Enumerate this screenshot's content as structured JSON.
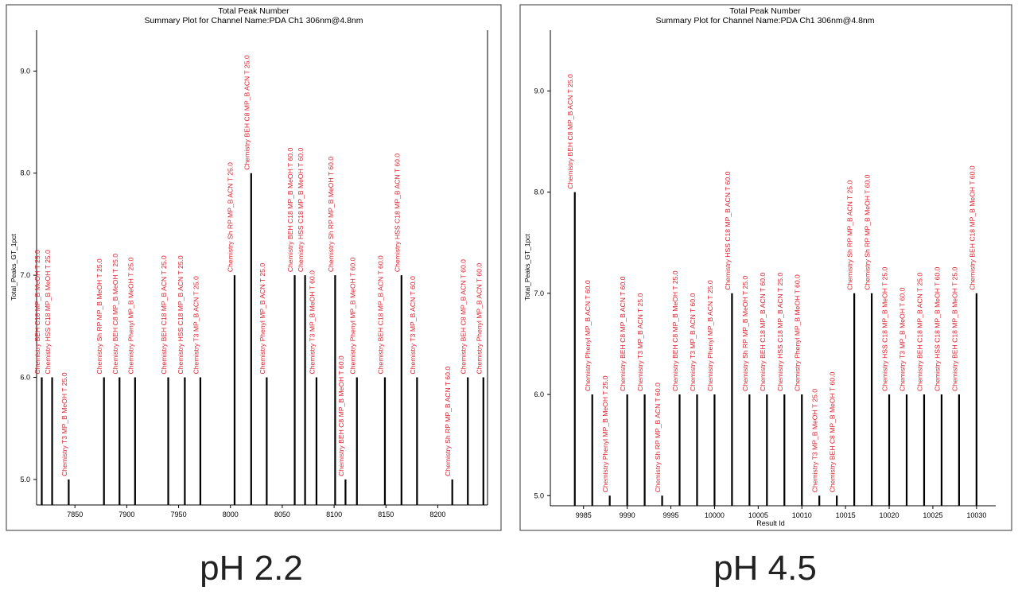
{
  "chart_data": [
    {
      "type": "bar",
      "title": "Total Peak Number",
      "subtitle": "Summary Plot for Channel Name:PDA Ch1 306nm@4.8nm",
      "ylabel": "Total_Peaks_GT_1pct",
      "xlabel": "",
      "ylim": [
        4.75,
        9.4
      ],
      "xlim": [
        7813,
        8248
      ],
      "yticks": [
        5.0,
        6.0,
        7.0,
        8.0,
        9.0
      ],
      "xticks": [
        7850,
        7900,
        7950,
        8000,
        8050,
        8100,
        8150,
        8200
      ],
      "caption": "pH 2.2",
      "points": [
        {
          "x": 7818,
          "y": 6.0,
          "label": "Chemistry BEH C18 MP_B MeOH T 25.0"
        },
        {
          "x": 7828,
          "y": 6.0,
          "label": "Chemistry HSS C18 MP_B MeOH T 25.0"
        },
        {
          "x": 7844,
          "y": 5.0,
          "label": "Chemistry T3 MP_B MeOH T 25.0"
        },
        {
          "x": 7878,
          "y": 6.0,
          "label": "Chemistry Sh RP MP_B MeOH T 25.0"
        },
        {
          "x": 7893,
          "y": 6.0,
          "label": "Chemistry BEH C8 MP_B MeOH T 25.0"
        },
        {
          "x": 7908,
          "y": 6.0,
          "label": "Chemistry Phenyl MP_B MeOH T 25.0"
        },
        {
          "x": 7940,
          "y": 6.0,
          "label": "Chemistry BEH C18 MP_B ACN T 25.0"
        },
        {
          "x": 7956,
          "y": 6.0,
          "label": "Chemistry HSS C18 MP_B ACN T 25.0"
        },
        {
          "x": 7971,
          "y": 6.0,
          "label": "Chemistry T3 MP_B ACN T 25.0"
        },
        {
          "x": 8004,
          "y": 7.0,
          "label": "Chemistry Sh RP MP_B ACN T 25.0"
        },
        {
          "x": 8020,
          "y": 8.0,
          "label": "Chemistry BEH C8 MP_B ACN T 25.0"
        },
        {
          "x": 8035,
          "y": 6.0,
          "label": "Chemistry Phenyl MP_B ACN T 25.0"
        },
        {
          "x": 8062,
          "y": 7.0,
          "label": "Chemistry BEH C18 MP_B MeOH T 60.0"
        },
        {
          "x": 8072,
          "y": 7.0,
          "label": "Chemistry HSS C18 MP_B MeOH T 60.0"
        },
        {
          "x": 8083,
          "y": 6.0,
          "label": "Chemistry T3 MP_B MeOH T 60.0"
        },
        {
          "x": 8101,
          "y": 7.0,
          "label": "Chemistry Sh RP MP_B MeOH T 60.0"
        },
        {
          "x": 8111,
          "y": 5.0,
          "label": "Chemistry BEH C8 MP_B MeOH T 60.0"
        },
        {
          "x": 8122,
          "y": 6.0,
          "label": "Chemistry Phenyl MP_B MeOH T 60.0"
        },
        {
          "x": 8149,
          "y": 6.0,
          "label": "Chemistry BEH C18 MP_B ACN T 60.0"
        },
        {
          "x": 8165,
          "y": 7.0,
          "label": "Chemistry HSS C18 MP_B ACN T 60.0"
        },
        {
          "x": 8180,
          "y": 6.0,
          "label": "Chemistry T3 MP_B ACN T 60.0"
        },
        {
          "x": 8214,
          "y": 5.0,
          "label": "Chemistry Sh RP MP_B ACN T 60.0"
        },
        {
          "x": 8229,
          "y": 6.0,
          "label": "Chemistry BEH C8 MP_B ACN T 60.0"
        },
        {
          "x": 8244,
          "y": 6.0,
          "label": "Chemistry Phenyl MP_B ACN T 60.0"
        }
      ]
    },
    {
      "type": "bar",
      "title": "Total Peak Number",
      "subtitle": "Summary Plot for Channel Name:PDA Ch1 306nm@4.8nm",
      "ylabel": "Total_Peaks_GT_1pct",
      "xlabel": "Result Id",
      "ylim": [
        4.9,
        9.6
      ],
      "xlim": [
        9981.2,
        10032.2
      ],
      "yticks": [
        5.0,
        6.0,
        7.0,
        8.0,
        9.0
      ],
      "xticks": [
        9985,
        9990,
        9995,
        10000,
        10005,
        10010,
        10015,
        10020,
        10025,
        10030
      ],
      "caption": "pH 4.5",
      "points": [
        {
          "x": 9984,
          "y": 8.0,
          "label": "Chemistry BEH C8 MP_B ACN T 25.0"
        },
        {
          "x": 9986,
          "y": 6.0,
          "label": "Chemistry Phenyl MP_B ACN T 60.0"
        },
        {
          "x": 9988,
          "y": 5.0,
          "label": "Chemistry Phenyl MP_B MeOH T 25.0"
        },
        {
          "x": 9990,
          "y": 6.0,
          "label": "Chemistry BEH C8 MP_B ACN T 60.0"
        },
        {
          "x": 9992,
          "y": 6.0,
          "label": "Chemistry T3 MP_B ACN T 25.0"
        },
        {
          "x": 9994,
          "y": 5.0,
          "label": "Chemistry Sh RP MP_B ACN T 60.0"
        },
        {
          "x": 9996,
          "y": 6.0,
          "label": "Chemistry BEH C8 MP_B MeOH T 25.0"
        },
        {
          "x": 9998,
          "y": 6.0,
          "label": "Chemistry T3 MP_B ACN T 60.0"
        },
        {
          "x": 10000,
          "y": 6.0,
          "label": "Chemistry Phenyl MP_B ACN T 25.0"
        },
        {
          "x": 10002,
          "y": 7.0,
          "label": "Chemistry HSS C18 MP_B ACN T 60.0"
        },
        {
          "x": 10004,
          "y": 6.0,
          "label": "Chemistry Sh RP MP_B MeOH T 25.0"
        },
        {
          "x": 10006,
          "y": 6.0,
          "label": "Chemistry BEH C18 MP_B ACN T 60.0"
        },
        {
          "x": 10008,
          "y": 6.0,
          "label": "Chemistry HSS C18 MP_B ACN T 25.0"
        },
        {
          "x": 10010,
          "y": 6.0,
          "label": "Chemistry Phenyl MP_B MeOH T 60.0"
        },
        {
          "x": 10012,
          "y": 5.0,
          "label": "Chemistry T3 MP_B MeOH T 25.0"
        },
        {
          "x": 10014,
          "y": 5.0,
          "label": "Chemistry BEH C8 MP_B MeOH T 60.0"
        },
        {
          "x": 10016,
          "y": 7.0,
          "label": "Chemistry Sh RP MP_B ACN T 25.0"
        },
        {
          "x": 10018,
          "y": 7.0,
          "label": "Chemistry Sh RP MP_B MeOH T 60.0"
        },
        {
          "x": 10020,
          "y": 6.0,
          "label": "Chemistry HSS C18 MP_B MeOH T 25.0"
        },
        {
          "x": 10022,
          "y": 6.0,
          "label": "Chemistry T3 MP_B MeOH T 60.0"
        },
        {
          "x": 10024,
          "y": 6.0,
          "label": "Chemistry BEH C18 MP_B ACN T 25.0"
        },
        {
          "x": 10026,
          "y": 6.0,
          "label": "Chemistry HSS C18 MP_B MeOH T 60.0"
        },
        {
          "x": 10028,
          "y": 6.0,
          "label": "Chemistry BEH C18 MP_B MeOH T 25.0"
        },
        {
          "x": 10030,
          "y": 7.0,
          "label": "Chemistry BEH C18 MP_B MeOH T 60.0"
        }
      ]
    }
  ],
  "colors": {
    "bar": "#000000",
    "label": "#d9232e",
    "axis": "#000000",
    "frame": "#555555"
  }
}
